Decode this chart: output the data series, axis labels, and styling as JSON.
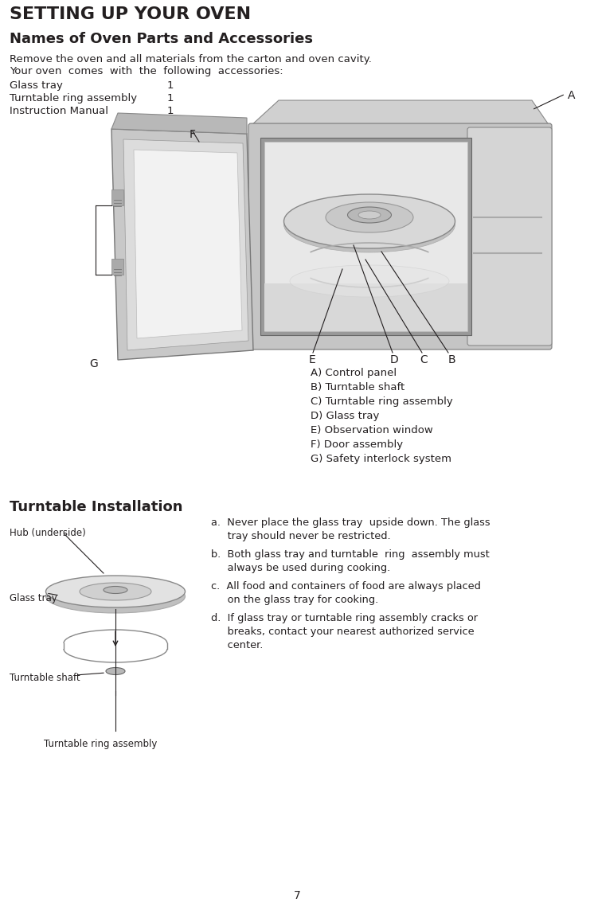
{
  "title": "SETTING UP YOUR OVEN",
  "subtitle": "Names of Oven Parts and Accessories",
  "body_text_1": "Remove the oven and all materials from the carton and oven cavity.",
  "body_text_2": "Your oven  comes  with  the  following  accessories:",
  "accessories": [
    [
      "Glass tray",
      "1"
    ],
    [
      "Turntable ring assembly",
      "1"
    ],
    [
      "Instruction Manual",
      "1"
    ]
  ],
  "parts_labels": [
    "A) Control panel",
    "B) Turntable shaft",
    "C) Turntable ring assembly",
    "D) Glass tray",
    "E) Observation window",
    "F) Door assembly",
    "G) Safety interlock system"
  ],
  "turntable_title": "Turntable Installation",
  "instructions": [
    "a.  Never place the glass tray  upside down. The glass\n     tray should never be restricted.",
    "b.  Both glass tray and turntable  ring  assembly must\n     always be used during cooking.",
    "c.  All food and containers of food are always placed\n     on the glass tray for cooking.",
    "d.  If glass tray or turntable ring assembly cracks or\n     breaks, contact your nearest authorized service\n     center."
  ],
  "hub_label": "Hub (underside)",
  "glass_tray_label": "Glass tray",
  "turntable_shaft_label": "Turntable shaft",
  "turntable_ring_label": "Turntable ring assembly",
  "page_number": "7",
  "bg_color": "#ffffff",
  "tc": "#231f20",
  "gray1": "#c8c8c8",
  "gray2": "#a8a8a8",
  "gray3": "#e0e0e0",
  "gray4": "#888888",
  "gray5": "#d0d0d0"
}
